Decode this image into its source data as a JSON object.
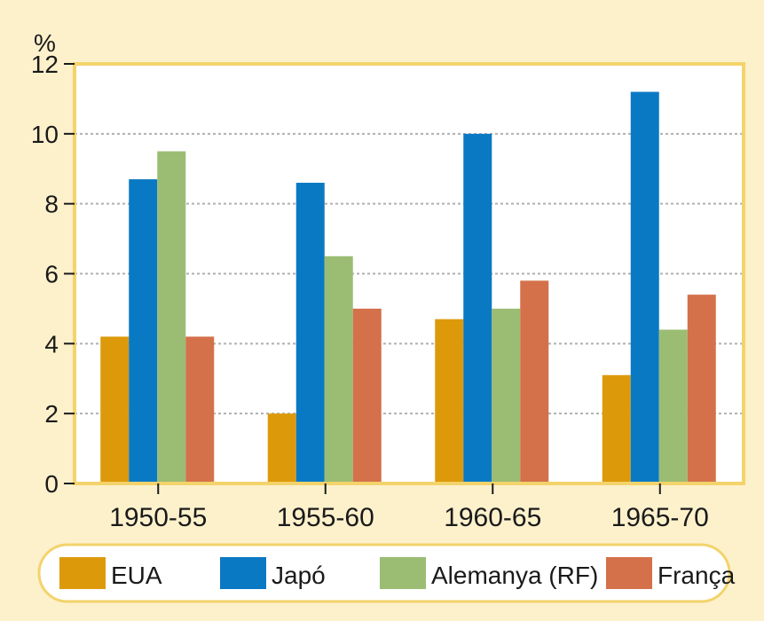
{
  "chart_data": {
    "type": "bar",
    "ylabel": "%",
    "ylim": [
      0,
      12
    ],
    "yticks": [
      0,
      2,
      4,
      6,
      8,
      10,
      12
    ],
    "grid": true,
    "legend_position": "bottom",
    "categories": [
      "1950-55",
      "1955-60",
      "1960-65",
      "1965-70"
    ],
    "series": [
      {
        "name": "EUA",
        "color": "#dc9a0b",
        "values": [
          4.2,
          2.0,
          4.7,
          3.1
        ]
      },
      {
        "name": "Japó",
        "color": "#0a79c4",
        "values": [
          8.7,
          8.6,
          10.0,
          11.2
        ]
      },
      {
        "name": "Alemanya (RF)",
        "color": "#9bbd73",
        "values": [
          9.5,
          6.5,
          5.0,
          4.4
        ]
      },
      {
        "name": "França",
        "color": "#d4714a",
        "values": [
          4.2,
          5.0,
          5.8,
          5.4
        ]
      }
    ]
  }
}
